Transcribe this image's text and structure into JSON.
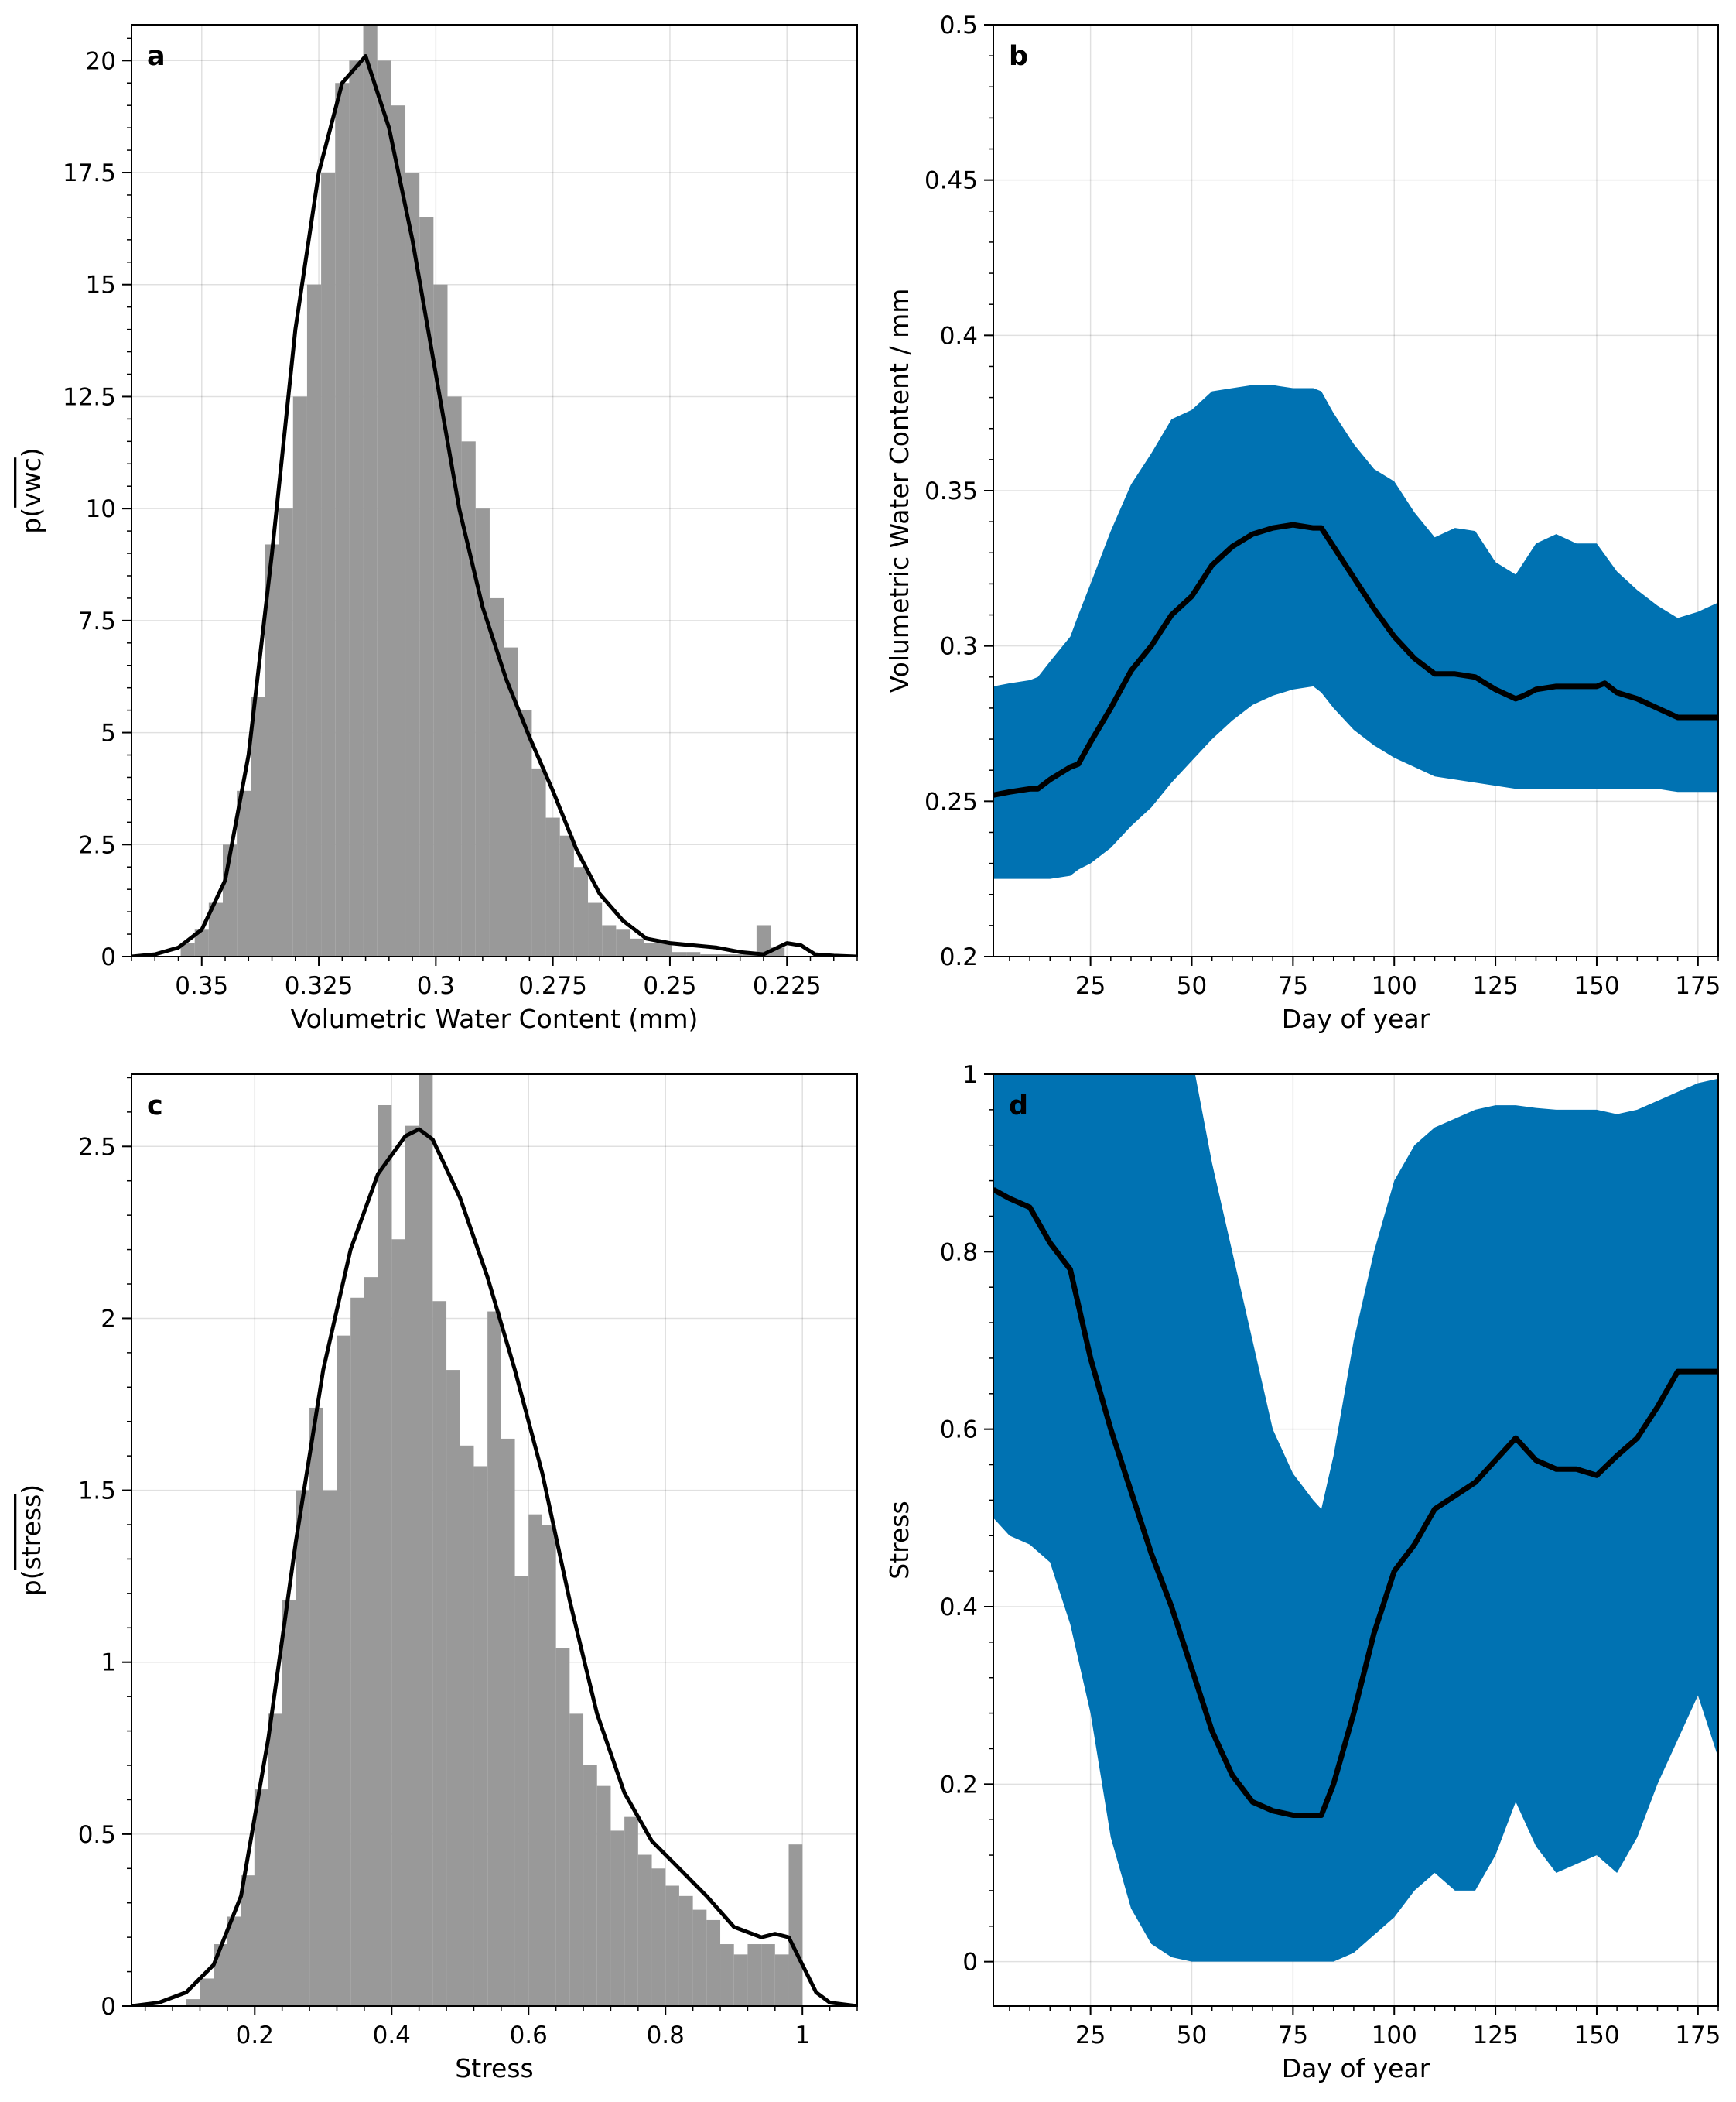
{
  "figure": {
    "panels": [
      "a",
      "b",
      "c",
      "d"
    ]
  },
  "chart_data": [
    {
      "id": "a",
      "type": "bar",
      "label": "a",
      "xlabel": "Volumetric Water Content (mm)",
      "ylabel": "p(vwc)",
      "ylabel_overline": "vwc",
      "xlim": [
        0.365,
        0.21
      ],
      "ylim": [
        0,
        20.8
      ],
      "x_inverted": true,
      "grid": true,
      "xticks": [
        0.35,
        0.325,
        0.3,
        0.275,
        0.25,
        0.225
      ],
      "xtick_labels": [
        "0.35",
        "0.325",
        "0.3",
        "0.275",
        "0.25",
        "0.225"
      ],
      "yticks": [
        0,
        2.5,
        5,
        7.5,
        10,
        12.5,
        15,
        17.5,
        20
      ],
      "ytick_labels": [
        "0",
        "2.5",
        "5",
        "7.5",
        "10",
        "12.5",
        "15",
        "17.5",
        "20"
      ],
      "histogram": {
        "color": "#999999",
        "bin_left": [
          0.3515,
          0.3485,
          0.3455,
          0.3425,
          0.3395,
          0.3365,
          0.3335,
          0.3305,
          0.3275,
          0.3245,
          0.3215,
          0.3185,
          0.3155,
          0.3125,
          0.3095,
          0.3065,
          0.3035,
          0.3005,
          0.2975,
          0.2945,
          0.2915,
          0.2885,
          0.2855,
          0.2825,
          0.2795,
          0.2765,
          0.2735,
          0.2705,
          0.2675,
          0.2645,
          0.2615,
          0.2585,
          0.2555,
          0.2525,
          0.2495,
          0.2465,
          0.2435,
          0.2405,
          0.2375,
          0.2345,
          0.2315,
          0.2285,
          0.2255
        ],
        "bin_width": 0.003,
        "values": [
          0.3,
          0.6,
          1.2,
          2.5,
          3.7,
          5.8,
          9.2,
          10.0,
          12.5,
          15.0,
          17.5,
          19.5,
          20.0,
          21.0,
          20.0,
          19.0,
          17.5,
          16.5,
          15.0,
          12.5,
          11.5,
          10.0,
          8.0,
          6.9,
          5.5,
          4.2,
          3.1,
          2.7,
          2.0,
          1.2,
          0.7,
          0.6,
          0.4,
          0.3,
          0.3,
          0.1,
          0.1,
          0.05,
          0.05,
          0.05,
          0.05,
          0.7,
          0.2
        ]
      },
      "kde": {
        "color": "#000000",
        "x": [
          0.365,
          0.36,
          0.355,
          0.35,
          0.345,
          0.34,
          0.335,
          0.33,
          0.325,
          0.32,
          0.315,
          0.31,
          0.305,
          0.3,
          0.295,
          0.29,
          0.285,
          0.28,
          0.275,
          0.27,
          0.265,
          0.26,
          0.255,
          0.25,
          0.245,
          0.24,
          0.235,
          0.23,
          0.227,
          0.225,
          0.222,
          0.219,
          0.215,
          0.21
        ],
        "y": [
          0,
          0.05,
          0.2,
          0.6,
          1.7,
          4.5,
          9.0,
          14.0,
          17.5,
          19.5,
          20.1,
          18.5,
          16.0,
          13.0,
          10.0,
          7.8,
          6.2,
          4.9,
          3.7,
          2.4,
          1.4,
          0.8,
          0.4,
          0.3,
          0.25,
          0.2,
          0.1,
          0.05,
          0.2,
          0.3,
          0.25,
          0.05,
          0.02,
          0
        ]
      }
    },
    {
      "id": "b",
      "type": "area",
      "label": "b",
      "xlabel": "Day of year",
      "ylabel": "Volumetric Water Content / mm",
      "xlim": [
        1,
        180
      ],
      "ylim": [
        0.2,
        0.5
      ],
      "grid": true,
      "xticks": [
        25,
        50,
        75,
        100,
        125,
        150,
        175
      ],
      "xtick_labels": [
        "25",
        "50",
        "75",
        "100",
        "125",
        "150",
        "175"
      ],
      "yticks": [
        0.2,
        0.25,
        0.3,
        0.35,
        0.4,
        0.45,
        0.5
      ],
      "ytick_labels": [
        "0.2",
        "0.25",
        "0.3",
        "0.35",
        "0.4",
        "0.45",
        "0.5"
      ],
      "band": {
        "color": "#0072b2",
        "x": [
          1,
          5,
          10,
          12,
          15,
          20,
          22,
          25,
          30,
          35,
          40,
          45,
          50,
          55,
          60,
          65,
          70,
          75,
          80,
          82,
          85,
          90,
          95,
          100,
          105,
          110,
          115,
          120,
          125,
          130,
          135,
          140,
          145,
          150,
          155,
          160,
          165,
          170,
          175,
          180
        ],
        "upper": [
          0.287,
          0.288,
          0.289,
          0.29,
          0.295,
          0.303,
          0.31,
          0.32,
          0.337,
          0.352,
          0.362,
          0.373,
          0.376,
          0.382,
          0.383,
          0.384,
          0.384,
          0.383,
          0.383,
          0.382,
          0.375,
          0.365,
          0.357,
          0.353,
          0.343,
          0.335,
          0.338,
          0.337,
          0.327,
          0.323,
          0.333,
          0.336,
          0.333,
          0.333,
          0.324,
          0.318,
          0.313,
          0.309,
          0.311,
          0.314
        ],
        "lower": [
          0.225,
          0.225,
          0.225,
          0.225,
          0.225,
          0.226,
          0.228,
          0.23,
          0.235,
          0.242,
          0.248,
          0.256,
          0.263,
          0.27,
          0.276,
          0.281,
          0.284,
          0.286,
          0.287,
          0.285,
          0.28,
          0.273,
          0.268,
          0.264,
          0.261,
          0.258,
          0.257,
          0.256,
          0.255,
          0.254,
          0.254,
          0.254,
          0.254,
          0.254,
          0.254,
          0.254,
          0.254,
          0.253,
          0.253,
          0.253
        ]
      },
      "line": {
        "color": "#000000",
        "x": [
          1,
          5,
          10,
          12,
          15,
          20,
          22,
          25,
          30,
          35,
          40,
          45,
          50,
          55,
          60,
          65,
          70,
          75,
          80,
          82,
          85,
          90,
          95,
          100,
          105,
          110,
          115,
          120,
          125,
          130,
          132,
          135,
          140,
          145,
          150,
          152,
          155,
          160,
          165,
          170,
          175,
          180
        ],
        "y": [
          0.252,
          0.253,
          0.254,
          0.254,
          0.257,
          0.261,
          0.262,
          0.269,
          0.28,
          0.292,
          0.3,
          0.31,
          0.316,
          0.326,
          0.332,
          0.336,
          0.338,
          0.339,
          0.338,
          0.338,
          0.332,
          0.322,
          0.312,
          0.303,
          0.296,
          0.291,
          0.291,
          0.29,
          0.286,
          0.283,
          0.284,
          0.286,
          0.287,
          0.287,
          0.287,
          0.288,
          0.285,
          0.283,
          0.28,
          0.277,
          0.277,
          0.277
        ]
      }
    },
    {
      "id": "c",
      "type": "bar",
      "label": "c",
      "xlabel": "Stress",
      "ylabel": "p(stress)",
      "ylabel_overline": "stress",
      "xlim": [
        0.02,
        1.08
      ],
      "ylim": [
        0,
        2.71
      ],
      "grid": true,
      "xticks": [
        0.2,
        0.4,
        0.6,
        0.8,
        1
      ],
      "xtick_labels": [
        "0.2",
        "0.4",
        "0.6",
        "0.8",
        "1"
      ],
      "yticks": [
        0,
        0.5,
        1,
        1.5,
        2,
        2.5
      ],
      "ytick_labels": [
        "0",
        "0.5",
        "1",
        "1.5",
        "2",
        "2.5"
      ],
      "histogram": {
        "color": "#999999",
        "bin_left": [
          0.1,
          0.12,
          0.14,
          0.16,
          0.18,
          0.2,
          0.22,
          0.24,
          0.26,
          0.28,
          0.3,
          0.32,
          0.34,
          0.36,
          0.38,
          0.4,
          0.42,
          0.44,
          0.46,
          0.48,
          0.5,
          0.52,
          0.54,
          0.56,
          0.58,
          0.6,
          0.62,
          0.64,
          0.66,
          0.68,
          0.7,
          0.72,
          0.74,
          0.76,
          0.78,
          0.8,
          0.82,
          0.84,
          0.86,
          0.88,
          0.9,
          0.92,
          0.94,
          0.96,
          0.98
        ],
        "bin_width": 0.02,
        "values": [
          0.02,
          0.08,
          0.18,
          0.26,
          0.38,
          0.63,
          0.85,
          1.18,
          1.5,
          1.74,
          1.5,
          1.95,
          2.06,
          2.12,
          2.62,
          2.23,
          2.56,
          2.82,
          2.05,
          1.85,
          1.63,
          1.57,
          2.02,
          1.65,
          1.25,
          1.43,
          1.4,
          1.04,
          0.85,
          0.7,
          0.64,
          0.51,
          0.55,
          0.44,
          0.4,
          0.35,
          0.32,
          0.28,
          0.25,
          0.18,
          0.15,
          0.18,
          0.18,
          0.15,
          0.47
        ]
      },
      "kde": {
        "color": "#000000",
        "x": [
          0.02,
          0.06,
          0.1,
          0.14,
          0.18,
          0.22,
          0.26,
          0.3,
          0.34,
          0.38,
          0.42,
          0.44,
          0.46,
          0.5,
          0.54,
          0.58,
          0.62,
          0.66,
          0.7,
          0.74,
          0.78,
          0.82,
          0.86,
          0.9,
          0.94,
          0.96,
          0.98,
          1.0,
          1.02,
          1.04,
          1.08
        ],
        "y": [
          0,
          0.01,
          0.04,
          0.12,
          0.32,
          0.78,
          1.35,
          1.85,
          2.2,
          2.42,
          2.53,
          2.55,
          2.52,
          2.35,
          2.12,
          1.85,
          1.55,
          1.18,
          0.85,
          0.62,
          0.48,
          0.4,
          0.32,
          0.23,
          0.2,
          0.21,
          0.2,
          0.12,
          0.04,
          0.01,
          0
        ]
      }
    },
    {
      "id": "d",
      "type": "area",
      "label": "d",
      "xlabel": "Day of year",
      "ylabel": "Stress",
      "xlim": [
        1,
        180
      ],
      "ylim": [
        -0.05,
        1
      ],
      "grid": true,
      "xticks": [
        25,
        50,
        75,
        100,
        125,
        150,
        175
      ],
      "xtick_labels": [
        "25",
        "50",
        "75",
        "100",
        "125",
        "150",
        "175"
      ],
      "yticks": [
        0,
        0.2,
        0.4,
        0.6,
        0.8,
        1
      ],
      "ytick_labels": [
        "0",
        "0.2",
        "0.4",
        "0.6",
        "0.8",
        "1"
      ],
      "band": {
        "color": "#0072b2",
        "x": [
          1,
          5,
          10,
          15,
          20,
          25,
          30,
          35,
          40,
          45,
          50,
          55,
          60,
          65,
          70,
          75,
          80,
          82,
          85,
          90,
          95,
          100,
          105,
          110,
          115,
          120,
          125,
          130,
          135,
          140,
          145,
          150,
          155,
          160,
          165,
          170,
          175,
          180
        ],
        "upper": [
          1.05,
          1.05,
          1.05,
          1.05,
          1.05,
          1.05,
          1.05,
          1.05,
          1.05,
          1.05,
          1.02,
          0.9,
          0.8,
          0.7,
          0.6,
          0.55,
          0.52,
          0.51,
          0.57,
          0.7,
          0.8,
          0.88,
          0.92,
          0.94,
          0.95,
          0.96,
          0.965,
          0.965,
          0.962,
          0.96,
          0.96,
          0.96,
          0.955,
          0.96,
          0.97,
          0.98,
          0.99,
          0.995
        ],
        "lower": [
          0.5,
          0.48,
          0.47,
          0.45,
          0.38,
          0.28,
          0.14,
          0.06,
          0.02,
          0.005,
          0.0,
          0.0,
          0.0,
          0.0,
          0.0,
          0.0,
          0.0,
          0.0,
          0.0,
          0.01,
          0.03,
          0.05,
          0.08,
          0.1,
          0.08,
          0.08,
          0.12,
          0.18,
          0.13,
          0.1,
          0.11,
          0.12,
          0.1,
          0.14,
          0.2,
          0.25,
          0.3,
          0.23
        ]
      },
      "line": {
        "color": "#000000",
        "x": [
          1,
          5,
          10,
          15,
          20,
          25,
          30,
          35,
          40,
          45,
          50,
          55,
          60,
          65,
          70,
          75,
          80,
          82,
          85,
          90,
          95,
          100,
          105,
          110,
          115,
          120,
          125,
          130,
          132,
          135,
          140,
          145,
          150,
          155,
          160,
          165,
          170,
          175,
          180
        ],
        "y": [
          0.87,
          0.86,
          0.85,
          0.81,
          0.78,
          0.68,
          0.6,
          0.53,
          0.46,
          0.4,
          0.33,
          0.26,
          0.21,
          0.18,
          0.17,
          0.165,
          0.165,
          0.165,
          0.2,
          0.28,
          0.37,
          0.44,
          0.47,
          0.51,
          0.525,
          0.54,
          0.565,
          0.59,
          0.58,
          0.565,
          0.555,
          0.555,
          0.548,
          0.57,
          0.59,
          0.625,
          0.665,
          0.665,
          0.665
        ]
      }
    }
  ]
}
